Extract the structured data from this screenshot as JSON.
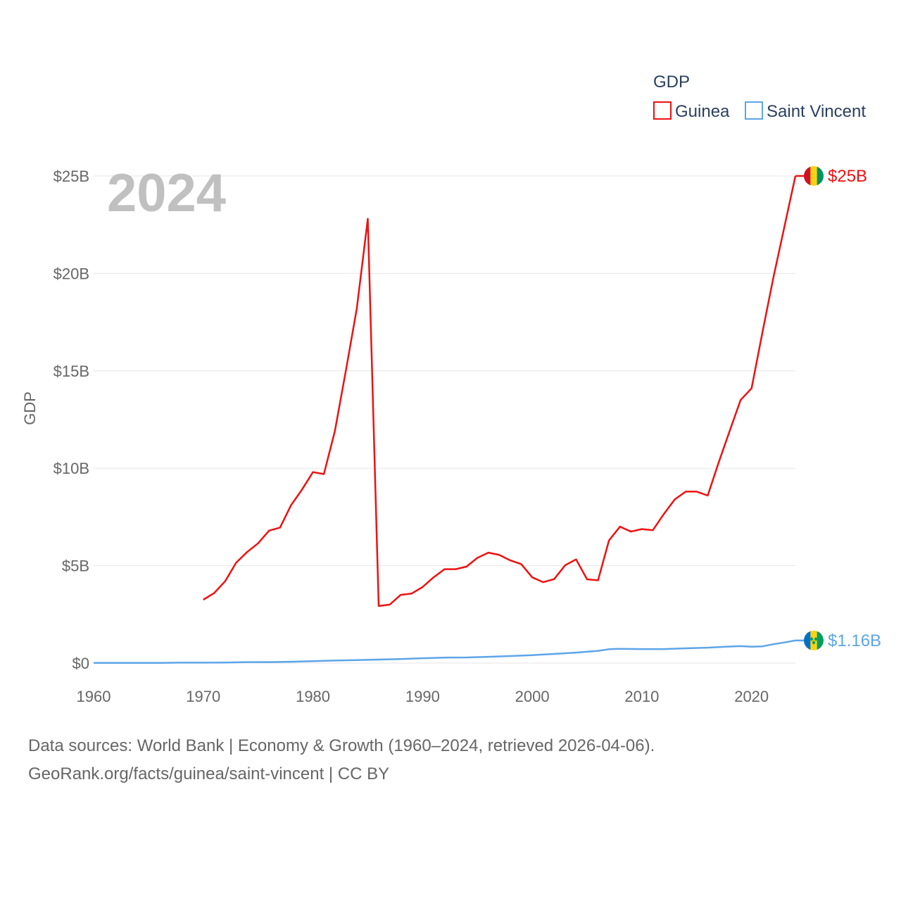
{
  "chart_data": {
    "type": "line",
    "year_label": "2024",
    "ylabel": "GDP",
    "xlabel": "",
    "xlim": [
      1960,
      2024
    ],
    "ylim": [
      0,
      25
    ],
    "x_ticks": [
      {
        "value": 1960,
        "label": "1960"
      },
      {
        "value": 1970,
        "label": "1970"
      },
      {
        "value": 1980,
        "label": "1980"
      },
      {
        "value": 1990,
        "label": "1990"
      },
      {
        "value": 2000,
        "label": "2000"
      },
      {
        "value": 2010,
        "label": "2010"
      },
      {
        "value": 2020,
        "label": "2020"
      }
    ],
    "y_ticks": [
      {
        "value": 0,
        "label": "$0"
      },
      {
        "value": 5,
        "label": "$5B"
      },
      {
        "value": 10,
        "label": "$10B"
      },
      {
        "value": 15,
        "label": "$15B"
      },
      {
        "value": 20,
        "label": "$20B"
      },
      {
        "value": 25,
        "label": "$25B"
      }
    ],
    "legend": {
      "title": "GDP",
      "position": "top-right"
    },
    "series": [
      {
        "name": "Guinea",
        "color": "#ee1111",
        "end_label": "$25B",
        "flag": "guinea-flag",
        "flag_colors": [
          "#ce1126",
          "#fcd116",
          "#009460"
        ],
        "x": [
          1970,
          1971,
          1972,
          1973,
          1974,
          1975,
          1976,
          1977,
          1978,
          1979,
          1980,
          1981,
          1982,
          1983,
          1984,
          1985,
          1986,
          1987,
          1988,
          1989,
          1990,
          1991,
          1992,
          1993,
          1994,
          1995,
          1996,
          1997,
          1998,
          1999,
          2000,
          2001,
          2002,
          2003,
          2004,
          2005,
          2006,
          2007,
          2008,
          2009,
          2010,
          2011,
          2012,
          2013,
          2014,
          2015,
          2016,
          2017,
          2018,
          2019,
          2020,
          2021,
          2022,
          2023,
          2024
        ],
        "values": [
          3.25,
          3.6,
          4.2,
          5.15,
          5.7,
          6.15,
          6.8,
          6.95,
          8.1,
          8.9,
          9.8,
          9.7,
          11.9,
          15.0,
          18.2,
          22.8,
          2.93,
          3.0,
          3.5,
          3.57,
          3.9,
          4.4,
          4.82,
          4.82,
          4.95,
          5.4,
          5.67,
          5.55,
          5.27,
          5.08,
          4.4,
          4.15,
          4.31,
          5.02,
          5.32,
          4.3,
          4.25,
          6.3,
          7.0,
          6.75,
          6.88,
          6.82,
          7.65,
          8.4,
          8.8,
          8.8,
          8.6,
          10.3,
          11.9,
          13.5,
          14.1,
          17.0,
          19.8,
          22.4,
          25.0
        ]
      },
      {
        "name": "Saint Vincent",
        "color": "#5da5e8",
        "end_label": "$1.16B",
        "flag": "saint-vincent-flag",
        "flag_colors": [
          "#0072c6",
          "#fcd116",
          "#009e60"
        ],
        "x": [
          1960,
          1962,
          1964,
          1966,
          1968,
          1970,
          1972,
          1974,
          1976,
          1978,
          1980,
          1982,
          1984,
          1986,
          1988,
          1990,
          1992,
          1994,
          1996,
          1998,
          2000,
          2002,
          2004,
          2006,
          2007,
          2008,
          2010,
          2012,
          2014,
          2016,
          2018,
          2019,
          2020,
          2021,
          2022,
          2023,
          2024
        ],
        "values": [
          0.01,
          0.01,
          0.01,
          0.01,
          0.02,
          0.02,
          0.03,
          0.05,
          0.05,
          0.07,
          0.1,
          0.13,
          0.15,
          0.18,
          0.21,
          0.25,
          0.28,
          0.29,
          0.32,
          0.36,
          0.41,
          0.47,
          0.54,
          0.63,
          0.71,
          0.73,
          0.72,
          0.72,
          0.76,
          0.79,
          0.85,
          0.87,
          0.84,
          0.86,
          0.97,
          1.06,
          1.16
        ]
      }
    ]
  },
  "source": {
    "line1": "Data sources: World Bank | Economy & Growth (1960–2024, retrieved 2026-04-06).",
    "line2": "GeoRank.org/facts/guinea/saint-vincent | CC BY"
  }
}
